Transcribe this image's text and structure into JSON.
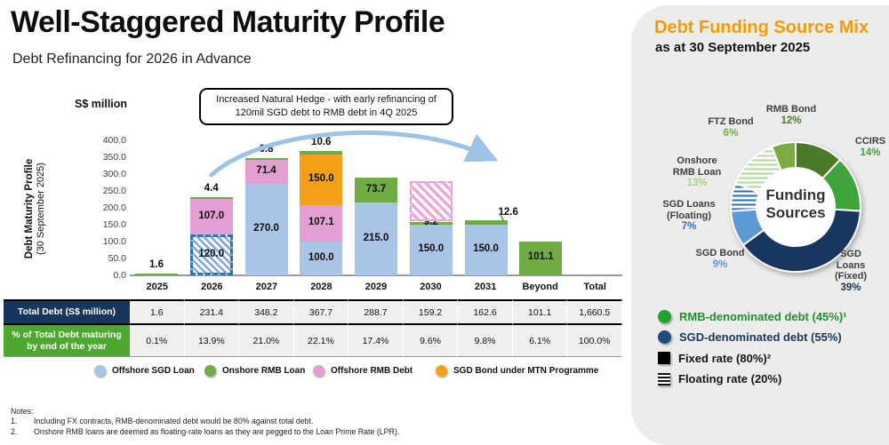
{
  "slide": {
    "title": "Well-Staggered Maturity Profile",
    "subtitle": "Debt Refinancing for 2026 in Advance",
    "annotation": "Increased Natural Hedge - with early refinancing of 120mil SGD debt to RMB debt in 4Q 2025",
    "notes_title": "Notes:",
    "notes": [
      {
        "num": "1.",
        "text": "Including FX contracts, RMB-denominated debt would be 80% against total debt."
      },
      {
        "num": "2.",
        "text": "Onshore RMB loans are deemed as floating-rate loans as they are pegged to the Loan Prime Rate (LPR)."
      }
    ]
  },
  "right_panel": {
    "title": "Debt Funding Source Mix",
    "subtitle": "as at 30 September 2025",
    "center_line1": "Funding",
    "center_line2": "Sources",
    "legend": [
      {
        "label": "RMB-denominated debt (45%)¹",
        "swatch": "circle",
        "swatch_color": "#1FA32C",
        "text_color": "#1E8E2E"
      },
      {
        "label": "SGD-denominated debt (55%)",
        "swatch": "circle",
        "swatch_color": "#1F4E79",
        "text_color": "#17375E"
      },
      {
        "label": "Fixed rate (80%)²",
        "swatch": "square",
        "swatch_color": "#000000",
        "text_color": "#14141E"
      },
      {
        "label": "Floating rate (20%)",
        "swatch": "square-stripes",
        "swatch_color": "#000000",
        "text_color": "#14141E"
      }
    ]
  },
  "bar_legend": [
    {
      "label": "Offshore SGD Loan",
      "color": "#A9C4E6"
    },
    {
      "label": "Onshore RMB Loan",
      "color": "#6FAC44"
    },
    {
      "label": "Offshore RMB Debt",
      "color": "#E39FD3"
    },
    {
      "label": "SGD Bond under MTN Programme",
      "color": "#F6A01A"
    }
  ],
  "table": {
    "columns": [
      "2025",
      "2026",
      "2027",
      "2028",
      "2029",
      "2030",
      "2031",
      "Beyond",
      "Total"
    ],
    "rows": [
      {
        "header": "Total Debt (S$ million)",
        "header_bg": "#17365D",
        "cells": [
          "1.6",
          "231.4",
          "348.2",
          "367.7",
          "288.7",
          "159.2",
          "162.6",
          "101.1",
          "1,660.5"
        ]
      },
      {
        "header": "% of Total Debt maturing by end of the year",
        "header_bg": "#4EA72E",
        "cells": [
          "0.1%",
          "13.9%",
          "21.0%",
          "22.1%",
          "17.4%",
          "9.6%",
          "9.8%",
          "6.1%",
          "100.0%"
        ]
      }
    ]
  },
  "chart_data": [
    {
      "type": "bar",
      "stacked": true,
      "title": "Debt Maturity Profile (30 September 2025)",
      "title_line1": "Debt Maturity Profile",
      "title_line2": "(30 September 2025)",
      "unit_label": "S$ million",
      "ylim": [
        0,
        400
      ],
      "yticks": [
        "400.0",
        "350.0",
        "300.0",
        "250.0",
        "200.0",
        "150.0",
        "100.0",
        "50.0",
        "0.0"
      ],
      "grid": false,
      "categories": [
        "2025",
        "2026",
        "2027",
        "2028",
        "2029",
        "2030",
        "2031",
        "Beyond"
      ],
      "bars": [
        {
          "category": "2025",
          "segments": [
            {
              "series": "Onshore RMB Loan",
              "value": 1.6,
              "label": "1.6",
              "label_pos": "above",
              "style": "green"
            }
          ]
        },
        {
          "category": "2026",
          "segments": [
            {
              "series": "Offshore SGD Loan (early refinanced to RMB debt)",
              "value": 120.0,
              "label": "120.0",
              "label_pos": "in",
              "style": "hatch-blue"
            },
            {
              "series": "Offshore RMB Debt",
              "value": 107.0,
              "label": "107.0",
              "label_pos": "in",
              "style": "pink"
            },
            {
              "series": "Onshore RMB Loan",
              "value": 4.4,
              "label": "4.4",
              "label_pos": "above",
              "style": "green"
            }
          ]
        },
        {
          "category": "2027",
          "segments": [
            {
              "series": "Offshore SGD Loan",
              "value": 270.0,
              "label": "270.0",
              "label_pos": "in",
              "style": "blue"
            },
            {
              "series": "Offshore RMB Debt",
              "value": 71.4,
              "label": "71.4",
              "label_pos": "in",
              "style": "pink"
            },
            {
              "series": "Onshore RMB Loan",
              "value": 6.8,
              "label": "6.8",
              "label_pos": "above",
              "style": "green"
            }
          ]
        },
        {
          "category": "2028",
          "segments": [
            {
              "series": "Offshore SGD Loan",
              "value": 100.0,
              "label": "100.0",
              "label_pos": "in",
              "style": "blue"
            },
            {
              "series": "Offshore RMB Debt",
              "value": 107.1,
              "label": "107.1",
              "label_pos": "in",
              "style": "pink"
            },
            {
              "series": "SGD Bond under MTN Programme",
              "value": 150.0,
              "label": "150.0",
              "label_pos": "in",
              "style": "orange"
            },
            {
              "series": "Onshore RMB Loan",
              "value": 10.6,
              "label": "10.6",
              "label_pos": "above",
              "style": "green"
            }
          ]
        },
        {
          "category": "2029",
          "segments": [
            {
              "series": "Offshore SGD Loan",
              "value": 215.0,
              "label": "215.0",
              "label_pos": "in",
              "style": "blue"
            },
            {
              "series": "Onshore RMB Loan",
              "value": 73.7,
              "label": "73.7",
              "label_pos": "in",
              "style": "green"
            }
          ]
        },
        {
          "category": "2030",
          "segments": [
            {
              "series": "Offshore SGD Loan",
              "value": 150.0,
              "label": "150.0",
              "label_pos": "in",
              "style": "blue"
            },
            {
              "series": "Onshore RMB Loan",
              "value": 9.2,
              "label": "9.2",
              "label_pos": "in",
              "style": "green"
            },
            {
              "series": "Offshore RMB Debt (early refinanced portion)",
              "value": 120.0,
              "label": "",
              "label_pos": "none",
              "style": "hatch-pink"
            }
          ]
        },
        {
          "category": "2031",
          "segments": [
            {
              "series": "Offshore SGD Loan",
              "value": 150.0,
              "label": "150.0",
              "label_pos": "in",
              "style": "blue"
            },
            {
              "series": "Onshore RMB Loan",
              "value": 12.6,
              "label": "12.6",
              "label_pos": "leader",
              "style": "green"
            }
          ]
        },
        {
          "category": "Beyond",
          "segments": [
            {
              "series": "Onshore RMB Loan",
              "value": 101.1,
              "label": "101.1",
              "label_pos": "in",
              "style": "green"
            }
          ]
        }
      ]
    },
    {
      "type": "pie",
      "donut": true,
      "title": "Funding Sources",
      "start_angle_deg": 0,
      "clockwise": true,
      "slices": [
        {
          "label": "RMB Bond",
          "pct": 12,
          "pct_label": "12%",
          "color": "#4C7A28",
          "pattern": "solid"
        },
        {
          "label": "CCIRS",
          "pct": 14,
          "pct_label": "14%",
          "color": "#3EA43B",
          "pattern": "solid"
        },
        {
          "label": "SGD Loans (Fixed)",
          "pct": 39,
          "pct_label": "39%",
          "color": "#17375E",
          "pattern": "solid"
        },
        {
          "label": "SGD Bond",
          "pct": 9,
          "pct_label": "9%",
          "color": "#5B9BD5",
          "pattern": "solid"
        },
        {
          "label": "SGD Loans (Floating)",
          "pct": 7,
          "pct_label": "7%",
          "color": "#2E75B6",
          "pattern": "stripes"
        },
        {
          "label": "Onshore RMB Loan",
          "pct": 13,
          "pct_label": "13%",
          "color": "#B7D89C",
          "pattern": "stripes"
        },
        {
          "label": "FTZ Bond",
          "pct": 6,
          "pct_label": "6%",
          "color": "#79AC41",
          "pattern": "solid"
        }
      ]
    }
  ]
}
